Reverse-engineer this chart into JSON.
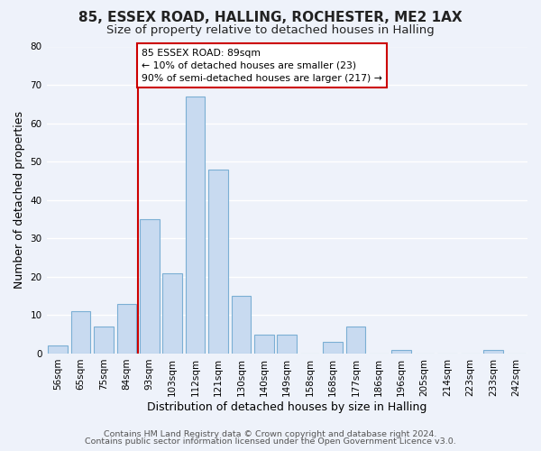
{
  "title": "85, ESSEX ROAD, HALLING, ROCHESTER, ME2 1AX",
  "subtitle": "Size of property relative to detached houses in Halling",
  "xlabel": "Distribution of detached houses by size in Halling",
  "ylabel": "Number of detached properties",
  "bar_labels": [
    "56sqm",
    "65sqm",
    "75sqm",
    "84sqm",
    "93sqm",
    "103sqm",
    "112sqm",
    "121sqm",
    "130sqm",
    "140sqm",
    "149sqm",
    "158sqm",
    "168sqm",
    "177sqm",
    "186sqm",
    "196sqm",
    "205sqm",
    "214sqm",
    "223sqm",
    "233sqm",
    "242sqm"
  ],
  "bar_values": [
    2,
    11,
    7,
    13,
    35,
    21,
    67,
    48,
    15,
    5,
    5,
    0,
    3,
    7,
    0,
    1,
    0,
    0,
    0,
    1,
    0
  ],
  "bar_color": "#c8daf0",
  "bar_edge_color": "#7bafd4",
  "vline_color": "#cc0000",
  "annotation_title": "85 ESSEX ROAD: 89sqm",
  "annotation_line1": "← 10% of detached houses are smaller (23)",
  "annotation_line2": "90% of semi-detached houses are larger (217) →",
  "annotation_box_color": "#ffffff",
  "annotation_box_edge": "#cc0000",
  "footer1": "Contains HM Land Registry data © Crown copyright and database right 2024.",
  "footer2": "Contains public sector information licensed under the Open Government Licence v3.0.",
  "ylim": [
    0,
    80
  ],
  "yticks": [
    0,
    10,
    20,
    30,
    40,
    50,
    60,
    70,
    80
  ],
  "bg_color": "#eef2fa",
  "grid_color": "#ffffff",
  "title_fontsize": 11,
  "subtitle_fontsize": 9.5,
  "axis_label_fontsize": 9,
  "tick_fontsize": 7.5,
  "footer_fontsize": 6.8
}
